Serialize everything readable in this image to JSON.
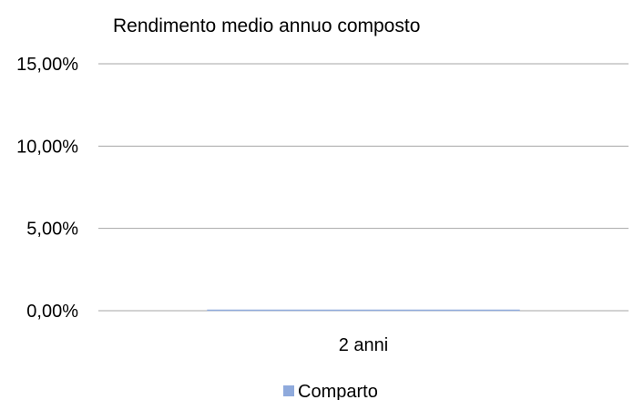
{
  "chart_data": {
    "type": "bar",
    "title": "Rendimento medio annuo composto",
    "categories": [
      "2 anni"
    ],
    "series": [
      {
        "name": "Comparto",
        "values": [
          0.0
        ],
        "color": "#8faadc"
      }
    ],
    "y_ticks": [
      "0,00%",
      "5,00%",
      "10,00%",
      "15,00%"
    ],
    "y_tick_values": [
      0,
      5,
      10,
      15
    ],
    "ylim": [
      0,
      15
    ],
    "grid": true,
    "legend_position": "bottom",
    "gridline_color": "#a6a6a6"
  }
}
